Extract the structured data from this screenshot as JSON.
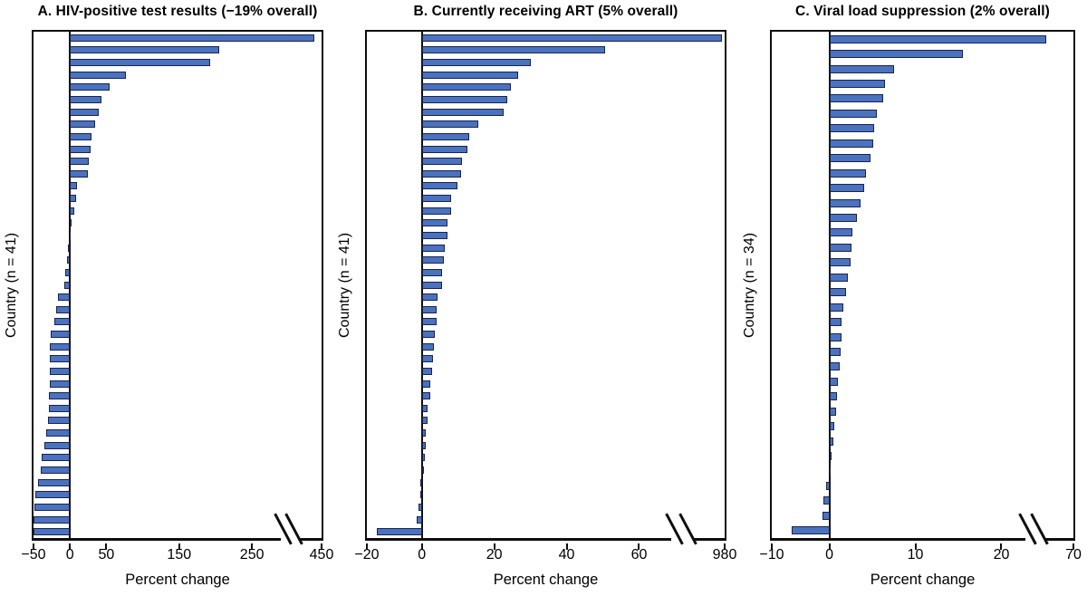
{
  "figure": {
    "background": "#ffffff",
    "bar_fill": "#4a72bf",
    "bar_border": "#19244e",
    "axis_color": "#0e0e0e",
    "text_color": "#000000"
  },
  "chart_data": [
    {
      "panel": "A",
      "type": "bar",
      "orientation": "horizontal",
      "title": "A. HIV-positive test results (−19% overall)",
      "xlabel": "Percent change",
      "ylabel": "Country (n = 41)",
      "n_countries": 41,
      "overall_change_pct": -19,
      "axis": {
        "tick_labels": [
          "−50",
          "0",
          "50",
          "150",
          "250",
          "450"
        ],
        "tick_values": [
          -50,
          0,
          50,
          150,
          250,
          450
        ],
        "anchors": [
          [
            -50,
            0
          ],
          [
            250,
            0.7584
          ],
          [
            450,
            1
          ]
        ],
        "break_frac": 0.862,
        "break_between": [
          250,
          450
        ],
        "grid": false
      },
      "values": [
        430,
        205,
        192,
        77,
        55,
        43,
        40,
        34,
        30,
        28,
        26,
        25,
        10,
        8,
        6,
        2.5,
        1,
        -3,
        -4,
        -6.5,
        -7.5,
        -17,
        -19.5,
        -22,
        -26,
        -27,
        -27.5,
        -27.5,
        -28,
        -28.5,
        -29,
        -30,
        -33,
        -34.5,
        -38.5,
        -40,
        -43.5,
        -47.5,
        -48.5,
        -49.5,
        -49.5
      ]
    },
    {
      "panel": "B",
      "type": "bar",
      "orientation": "horizontal",
      "title": "B. Currently receiving ART (5% overall)",
      "xlabel": "Percent change",
      "ylabel": "Country (n = 41)",
      "n_countries": 41,
      "overall_change_pct": 5,
      "axis": {
        "tick_labels": [
          "−20",
          "0",
          "20",
          "40",
          "60",
          "980"
        ],
        "tick_values": [
          -20,
          0,
          20,
          40,
          60,
          980
        ],
        "anchors": [
          [
            -20,
            0
          ],
          [
            0,
            0.1537
          ],
          [
            60,
            0.7607
          ],
          [
            980,
            1
          ]
        ],
        "break_frac": 0.855,
        "break_between": [
          60,
          980
        ],
        "grid": false
      },
      "values": [
        950,
        50.5,
        30,
        26.5,
        24.5,
        23.5,
        22.5,
        15.5,
        13,
        12.5,
        11,
        10.8,
        9.8,
        8.2,
        8.2,
        7.2,
        7.2,
        6.4,
        6,
        5.5,
        5.5,
        4.4,
        4.2,
        4,
        3.5,
        3.3,
        3,
        2.8,
        2.3,
        2.3,
        1.7,
        1.7,
        1.2,
        1.2,
        0.7,
        0.5,
        -0.5,
        -0.7,
        -1.3,
        -2,
        -16.5
      ]
    },
    {
      "panel": "C",
      "type": "bar",
      "orientation": "horizontal",
      "title": "C. Viral load suppression (2% overall)",
      "xlabel": "Percent change",
      "ylabel": "Country (n = 34)",
      "n_countries": 34,
      "overall_change_pct": 2,
      "axis": {
        "tick_labels": [
          "−10",
          "0",
          "10",
          "20",
          "70"
        ],
        "tick_values": [
          -10,
          0,
          10,
          20,
          70
        ],
        "anchors": [
          [
            -10,
            0
          ],
          [
            0,
            0.191
          ],
          [
            20,
            0.7612
          ],
          [
            70,
            1
          ]
        ],
        "break_frac": 0.845,
        "break_between": [
          20,
          70
        ],
        "grid": false
      },
      "values": [
        51,
        15.5,
        7.5,
        6.5,
        6.3,
        5.5,
        5.2,
        5.1,
        4.8,
        4.3,
        4,
        3.6,
        3.2,
        2.7,
        2.6,
        2.5,
        2.1,
        1.9,
        1.6,
        1.4,
        1.4,
        1.3,
        1.2,
        1,
        0.9,
        0.8,
        0.6,
        0.5,
        0.25,
        0.1,
        -0.5,
        -1,
        -1.2,
        -6.5
      ]
    }
  ]
}
